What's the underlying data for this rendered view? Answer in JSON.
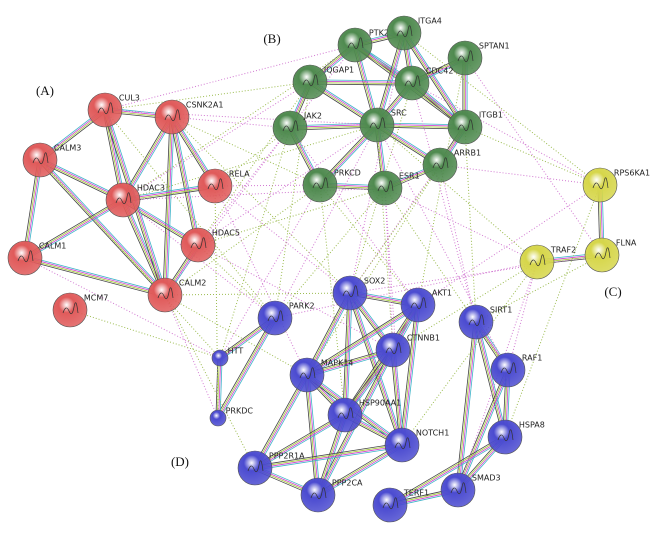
{
  "clusters": [
    {
      "label": "(A)",
      "color": "#e05a5a",
      "nodes": [
        "CUL3",
        "CSNK2A1",
        "CALM3",
        "HDAC3",
        "RELA",
        "CALM1",
        "HDAC5",
        "CALM2",
        "MCM7"
      ]
    },
    {
      "label": "(B)",
      "color": "#4f8a4f",
      "nodes": [
        "PTK2",
        "ITGA4",
        "SPTAN1",
        "IQGAP1",
        "CDC42",
        "JAK2",
        "SRC",
        "ITGB1",
        "PRKCD",
        "ESR1",
        "ARRB1"
      ]
    },
    {
      "label": "(C)",
      "color": "#d6d64a",
      "nodes": [
        "RPS6KA1",
        "TRAF2",
        "FLNA"
      ]
    },
    {
      "label": "(D)",
      "color": "#4b4bd0",
      "nodes": [
        "SOX2",
        "PARK2",
        "AKT1",
        "SIRT1",
        "CTNNB1",
        "HTT",
        "MAPK14",
        "RAF1",
        "HSP90AA1",
        "PRKDC",
        "NOTCH1",
        "HSPA8",
        "PPP2R1A",
        "SMAD3",
        "PPP2CA",
        "TERF1"
      ]
    }
  ]
}
